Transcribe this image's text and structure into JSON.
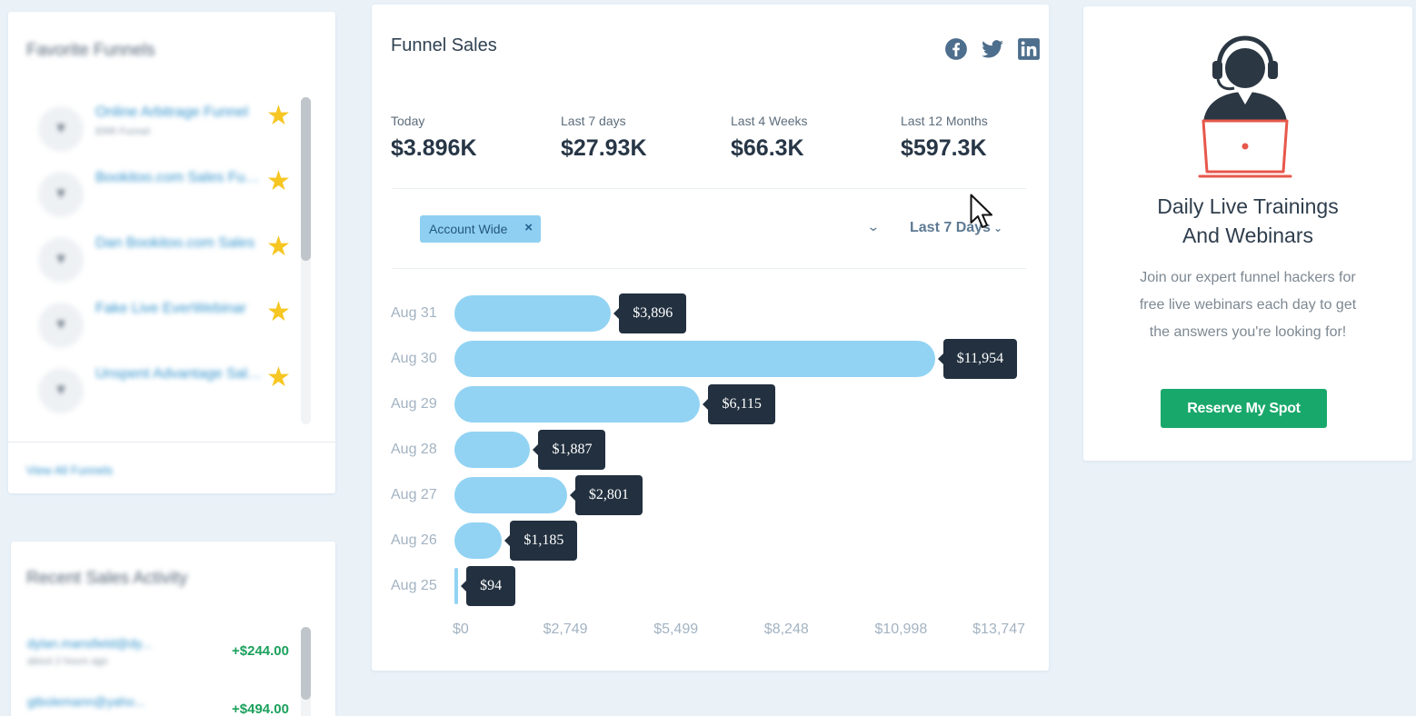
{
  "favorites": {
    "title": "Favorite Funnels",
    "items": [
      {
        "name": "Online Arbitrage Funnel",
        "sub": "ERR Funnel"
      },
      {
        "name": "Bookitoo.com Sales Funnel",
        "sub": ""
      },
      {
        "name": "Dan Bookitoo.com Sales",
        "sub": ""
      },
      {
        "name": "Fake Live EverWebinar",
        "sub": ""
      },
      {
        "name": "Unspent Advantage Sales",
        "sub": ""
      }
    ],
    "view_all": "View All Funnels"
  },
  "recent_sales": {
    "title": "Recent Sales Activity",
    "rows": [
      {
        "email": "dylan.mansfield@dy...",
        "time": "about 2 hours ago",
        "amount": "+$244.00"
      },
      {
        "email": "gtbolemann@yaho...",
        "time": "",
        "amount": "+$494.00"
      }
    ]
  },
  "funnel_sales": {
    "title": "Funnel Sales",
    "social_icons": [
      "facebook-icon",
      "twitter-icon",
      "linkedin-icon"
    ],
    "social_color": "#4d6e8c",
    "stats": [
      {
        "label": "Today",
        "value": "$3.896K"
      },
      {
        "label": "Last 7 days",
        "value": "$27.93K"
      },
      {
        "label": "Last 4 Weeks",
        "value": "$66.3K"
      },
      {
        "label": "Last 12 Months",
        "value": "$597.3K"
      }
    ],
    "filter_tag": "Account Wide",
    "filter_tag_close": "×",
    "filter_chevron": "⌄",
    "range": "Last 7 Days",
    "range_chevron": "⌄"
  },
  "chart_data": {
    "type": "bar",
    "orientation": "horizontal",
    "categories": [
      "Aug 31",
      "Aug 30",
      "Aug 29",
      "Aug 28",
      "Aug 27",
      "Aug 26",
      "Aug 25"
    ],
    "values": [
      3896,
      11954,
      6115,
      1887,
      2801,
      1185,
      94
    ],
    "value_labels": [
      "$3,896",
      "$11,954",
      "$6,115",
      "$1,887",
      "$2,801",
      "$1,185",
      "$94"
    ],
    "x_ticks": [
      "$0",
      "$2,749",
      "$5,499",
      "$8,248",
      "$10,998",
      "$13,747"
    ],
    "xlim": [
      0,
      13747
    ],
    "bar_color": "#92d3f3",
    "tooltip_color": "#22303f"
  },
  "webinar": {
    "title_line1": "Daily Live Trainings",
    "title_line2": "And Webinars",
    "text": "Join our expert funnel hackers for free live webinars each day to get the answers you're looking for!",
    "button": "Reserve My Spot",
    "button_color": "#19a86b"
  }
}
